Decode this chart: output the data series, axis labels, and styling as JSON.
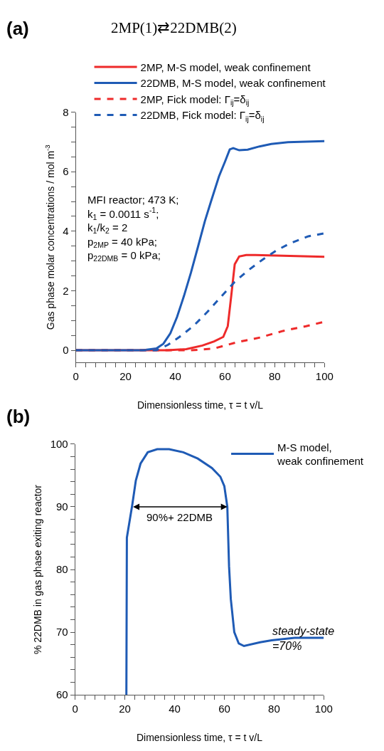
{
  "chart_data": [
    {
      "type": "line",
      "title": "2MP(1)⇄22DMB(2)",
      "xlabel": "Dimensionless time, τ = t v/L",
      "ylabel": "Gas phase molar concentrations / mol m$^{-3}$",
      "xlim": [
        0,
        100
      ],
      "ylim": [
        -0.4,
        8
      ],
      "xticks": [
        0,
        {
          "value": 4,
          "label": null
        },
        {
          "value": 8,
          "label": null
        },
        {
          "value": 12,
          "label": null
        },
        {
          "value": 16,
          "label": null
        },
        20,
        {
          "value": 24,
          "label": null
        },
        {
          "value": 28,
          "label": null
        },
        {
          "value": 32,
          "label": null
        },
        {
          "value": 36,
          "label": null
        },
        40,
        {
          "value": 44,
          "label": null
        },
        {
          "value": 48,
          "label": null
        },
        {
          "value": 52,
          "label": null
        },
        {
          "value": 56,
          "label": null
        },
        60,
        {
          "value": 64,
          "label": null
        },
        {
          "value": 68,
          "label": null
        },
        {
          "value": 72,
          "label": null
        },
        {
          "value": 76,
          "label": null
        },
        80,
        {
          "value": 84,
          "label": null
        },
        {
          "value": 88,
          "label": null
        },
        {
          "value": 92,
          "label": null
        },
        {
          "value": 96,
          "label": null
        },
        100
      ],
      "yticks": [
        0,
        {
          "value": 0.5,
          "label": null
        },
        {
          "value": 1,
          "label": null
        },
        {
          "value": 1.5,
          "label": null
        },
        2,
        {
          "value": 2.5,
          "label": null
        },
        {
          "value": 3,
          "label": null
        },
        {
          "value": 3.5,
          "label": null
        },
        4,
        {
          "value": 4.5,
          "label": null
        },
        {
          "value": 5,
          "label": null
        },
        {
          "value": 5.5,
          "label": null
        },
        6,
        {
          "value": 6.5,
          "label": null
        },
        {
          "value": 7,
          "label": null
        },
        {
          "value": 7.5,
          "label": null
        },
        8
      ],
      "legend": "top",
      "series": [
        {
          "name": "2MP, M-S model, weak confinement",
          "color": "#ee2a2a",
          "line_style": "solid",
          "x": [
            0,
            23.1,
            37,
            44.4,
            50.9,
            55.6,
            59.3,
            61.1,
            62.5,
            63.9,
            65.7,
            68.5,
            72.2,
            100
          ],
          "values": [
            0,
            0,
            0,
            0.04,
            0.16,
            0.3,
            0.45,
            0.81,
            1.83,
            2.89,
            3.15,
            3.2,
            3.2,
            3.14
          ]
        },
        {
          "name": "22DMB, M-S model, weak confinement",
          "color": "#1f5bb5",
          "line_style": "solid",
          "x": [
            0,
            26.9,
            32.4,
            35.2,
            38,
            40.7,
            43.5,
            46.3,
            49.1,
            51.9,
            54.2,
            57.6,
            60,
            61.9,
            63.3,
            65.7,
            69.1,
            73.9,
            78.6,
            85.3,
            100
          ],
          "values": [
            0,
            0,
            0.06,
            0.22,
            0.57,
            1.12,
            1.83,
            2.61,
            3.47,
            4.34,
            4.96,
            5.85,
            6.34,
            6.75,
            6.79,
            6.72,
            6.74,
            6.85,
            6.93,
            6.99,
            7.03
          ]
        },
        {
          "name": "2MP, Fick model: Γ$_{ij}$=δ$_{ij}$",
          "color": "#ee2a2a",
          "line_style": "dashed",
          "x": [
            0,
            32.4,
            46.3,
            55.6,
            64.8,
            74.1,
            83.3,
            92.6,
            100
          ],
          "values": [
            0,
            0,
            0,
            0.06,
            0.27,
            0.43,
            0.65,
            0.81,
            0.96
          ]
        },
        {
          "name": "22DMB, Fick model: Γ$_{ij}$=δ$_{ij}$",
          "color": "#1f5bb5",
          "line_style": "dashed",
          "x": [
            0,
            32.4,
            37,
            41.7,
            47.2,
            52.8,
            58.3,
            63.9,
            69.4,
            75,
            80.6,
            86.1,
            93.5,
            100
          ],
          "values": [
            0,
            0,
            0.18,
            0.45,
            0.81,
            1.28,
            1.79,
            2.3,
            2.69,
            3.04,
            3.35,
            3.59,
            3.83,
            3.93
          ]
        }
      ],
      "annotations": [
        "(a)",
        "MFI reactor; 473 K;\nk$_{1}$ = 0.0011 s$^{-1}$;\nk$_{1}$/k$_{2}$ = 2\np$_{2MP}$ = 40 kPa;\np$_{22DMB}$ = 0 kPa;"
      ]
    },
    {
      "type": "line",
      "xlabel": "Dimensionless time, τ = t v/L",
      "ylabel": "% 22DMB in gas phase exiting reactor",
      "xlim": [
        0,
        100
      ],
      "ylim": [
        60,
        100
      ],
      "xticks": [
        0,
        {
          "value": 4,
          "label": null
        },
        {
          "value": 8,
          "label": null
        },
        {
          "value": 12,
          "label": null
        },
        {
          "value": 16,
          "label": null
        },
        20,
        {
          "value": 24,
          "label": null
        },
        {
          "value": 28,
          "label": null
        },
        {
          "value": 32,
          "label": null
        },
        {
          "value": 36,
          "label": null
        },
        40,
        {
          "value": 44,
          "label": null
        },
        {
          "value": 48,
          "label": null
        },
        {
          "value": 52,
          "label": null
        },
        {
          "value": 56,
          "label": null
        },
        60,
        {
          "value": 64,
          "label": null
        },
        {
          "value": 68,
          "label": null
        },
        {
          "value": 72,
          "label": null
        },
        {
          "value": 76,
          "label": null
        },
        80,
        {
          "value": 84,
          "label": null
        },
        {
          "value": 88,
          "label": null
        },
        {
          "value": 92,
          "label": null
        },
        {
          "value": 96,
          "label": null
        },
        100
      ],
      "yticks": [
        60,
        {
          "value": 62,
          "label": null
        },
        {
          "value": 64,
          "label": null
        },
        {
          "value": 66,
          "label": null
        },
        {
          "value": 68,
          "label": null
        },
        70,
        {
          "value": 72,
          "label": null
        },
        {
          "value": 74,
          "label": null
        },
        {
          "value": 76,
          "label": null
        },
        {
          "value": 78,
          "label": null
        },
        80,
        {
          "value": 82,
          "label": null
        },
        {
          "value": 84,
          "label": null
        },
        {
          "value": 86,
          "label": null
        },
        {
          "value": 88,
          "label": null
        },
        90,
        {
          "value": 92,
          "label": null
        },
        {
          "value": 94,
          "label": null
        },
        {
          "value": 96,
          "label": null
        },
        {
          "value": 98,
          "label": null
        },
        100
      ],
      "legend": "top right",
      "series": [
        {
          "name": "M-S model,\nweak confinement",
          "color": "#1f5bb5",
          "line_style": "solid",
          "x": [
            20.6,
            20.8,
            23,
            24.4,
            26.3,
            29.2,
            33,
            37.8,
            43.5,
            49.3,
            55,
            58.4,
            60,
            61.2,
            61.9,
            62.6,
            64,
            65.8,
            67.9,
            74.4,
            79,
            88.3,
            100
          ],
          "values": [
            60,
            85.1,
            90.4,
            94.2,
            96.9,
            98.7,
            99.2,
            99.2,
            98.7,
            97.7,
            96.2,
            94.8,
            93.3,
            90,
            80.5,
            75.3,
            70,
            68.2,
            67.8,
            68.4,
            68.7,
            69.1,
            69.1
          ]
        }
      ],
      "annotations": [
        "(b)",
        {
          "text": "90%+ 22DMB",
          "x": 61.2,
          "y": 90
        },
        {
          "text": "steady-state\n=70%",
          "x": 78.6,
          "y": 69
        }
      ]
    }
  ]
}
